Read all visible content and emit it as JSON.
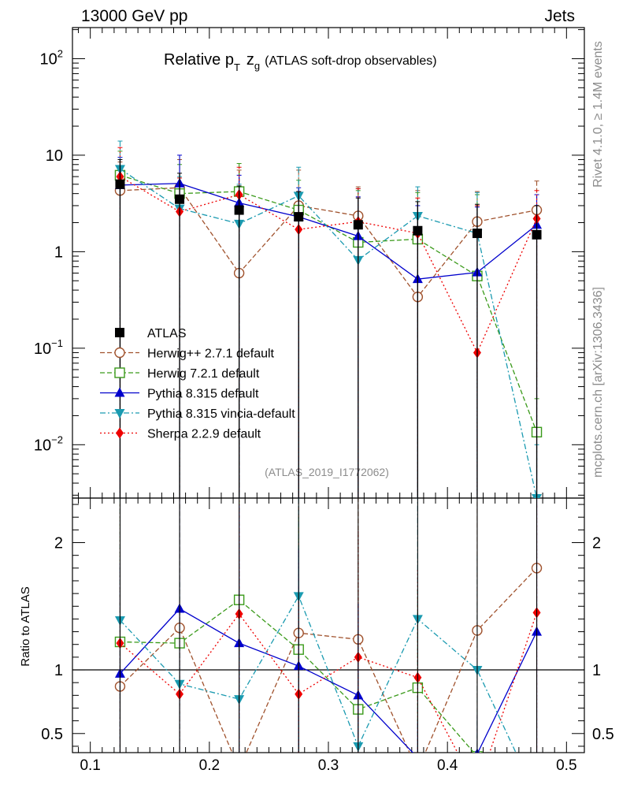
{
  "header": {
    "left": "13000 GeV pp",
    "right": "Jets"
  },
  "side_labels": {
    "rivet": "Rivet 4.1.0, ≥ 1.4M events",
    "mcplots": "mcplots.cern.ch [arXiv:1306.3436]"
  },
  "title": {
    "relative": "Relative p",
    "pt_sub": "T",
    "zg": "z",
    "zg_sub": "g",
    "rest": "(ATLAS soft-drop observables)"
  },
  "analysis_id": "(ATLAS_2019_I1772062)",
  "ratio_ylabel": "Ratio to ATLAS",
  "chart_data": {
    "type": "scatter",
    "x": [
      0.125,
      0.175,
      0.225,
      0.275,
      0.325,
      0.375,
      0.425,
      0.475
    ],
    "xlim": [
      0.085,
      0.515
    ],
    "xticks": [
      0.1,
      0.2,
      0.3,
      0.4,
      0.5
    ],
    "xtick_labels": [
      "0.1",
      "0.2",
      "0.3",
      "0.4",
      "0.5"
    ],
    "main": {
      "yscale": "log",
      "ylim": [
        0.0028,
        210
      ],
      "yticks": [
        {
          "v": 0.01,
          "base": "10",
          "exp": "−2"
        },
        {
          "v": 0.1,
          "base": "10",
          "exp": "−1"
        },
        {
          "v": 1,
          "base": "1",
          "exp": ""
        },
        {
          "v": 10,
          "base": "10",
          "exp": ""
        },
        {
          "v": 100,
          "base": "10",
          "exp": "2"
        }
      ]
    },
    "ratio": {
      "ylim": [
        0.35,
        2.35
      ],
      "yticks": [
        0.5,
        1,
        2
      ],
      "ytick_labels": [
        "0.5",
        "1",
        "2"
      ],
      "reference": 1
    },
    "series": [
      {
        "name": "ATLAS",
        "legend": "ATLAS",
        "color": "#000000",
        "marker": "square-filled",
        "line": "none",
        "values": [
          5.0,
          3.5,
          2.7,
          2.3,
          1.9,
          1.65,
          1.55,
          1.5
        ],
        "err_up": [
          9.0,
          6.5,
          4.8,
          4.2,
          3.6,
          3.3,
          3.1,
          3.0
        ],
        "err_low": [
          0.0001,
          0.0001,
          0.0001,
          0.0001,
          0.0001,
          0.0001,
          0.0001,
          0.0001
        ],
        "ratio": [
          1,
          1,
          1,
          1,
          1,
          1,
          1,
          1
        ]
      },
      {
        "name": "Herwig++ 2.7.1 default",
        "legend": "Herwig++ 2.7.1 default",
        "color": "#a0522d",
        "marker": "circle-open",
        "line": "dashed",
        "values": [
          4.3,
          4.6,
          0.6,
          3.0,
          2.35,
          0.34,
          2.05,
          2.7
        ],
        "err_up": [
          8.5,
          9.0,
          7.0,
          7.0,
          4.7,
          4.3,
          4.2,
          5.4
        ],
        "err_low": [
          0.0001,
          0.0001,
          0.0001,
          0.0001,
          0.0001,
          0.0001,
          0.0001,
          0.0001
        ],
        "ratio": [
          0.87,
          1.33,
          0.22,
          1.29,
          1.24,
          0.21,
          1.31,
          1.8
        ]
      },
      {
        "name": "Herwig 7.2.1 default",
        "legend": "Herwig 7.2.1 default",
        "color": "#3a9a1a",
        "marker": "square-open",
        "line": "dashed",
        "values": [
          6.2,
          4.0,
          4.2,
          2.7,
          1.25,
          1.35,
          0.56,
          0.0135
        ],
        "err_up": [
          11.0,
          8.0,
          8.2,
          5.5,
          4.3,
          4.1,
          3.9,
          0.03
        ],
        "err_low": [
          0.0001,
          0.0001,
          0.0001,
          0.0001,
          0.0001,
          0.0001,
          0.0001,
          0.0001
        ],
        "ratio": [
          1.22,
          1.21,
          1.55,
          1.16,
          0.69,
          0.86,
          0.32,
          0.01
        ]
      },
      {
        "name": "Pythia 8.315 default",
        "legend": "Pythia 8.315 default",
        "color": "#0000cc",
        "marker": "triangle-up",
        "line": "solid",
        "values": [
          4.9,
          5.1,
          3.2,
          2.3,
          1.45,
          0.52,
          0.61,
          1.9
        ],
        "err_up": [
          9.5,
          10.0,
          6.2,
          4.6,
          3.7,
          3.0,
          2.9,
          3.9
        ],
        "err_low": [
          0.0001,
          0.0001,
          0.0001,
          0.0001,
          0.0001,
          0.0001,
          0.0001,
          0.0001
        ],
        "ratio": [
          0.97,
          1.48,
          1.21,
          1.03,
          0.8,
          0.31,
          0.34,
          1.3
        ]
      },
      {
        "name": "Pythia 8.315 vincia-default",
        "legend": "Pythia 8.315 vincia-default",
        "color": "#1a9ab0",
        "marker": "triangle-down",
        "line": "dashdot",
        "values": [
          7.2,
          2.8,
          1.95,
          3.8,
          0.82,
          2.35,
          1.55,
          0.0028
        ],
        "err_up": [
          14.0,
          6.0,
          5.0,
          7.5,
          4.5,
          4.7,
          4.1,
          0.01
        ],
        "err_low": [
          0.0001,
          0.0001,
          0.0001,
          0.0001,
          0.0001,
          0.0001,
          0.0001,
          0.0001
        ],
        "ratio": [
          1.39,
          0.89,
          0.77,
          1.58,
          0.4,
          1.4,
          1.0,
          0.0
        ]
      },
      {
        "name": "Sherpa 2.2.9 default",
        "legend": "Sherpa 2.2.9 default",
        "color": "#ee0000",
        "marker": "diamond",
        "line": "dotted",
        "values": [
          6.0,
          2.6,
          3.9,
          1.7,
          2.05,
          1.55,
          0.09,
          2.2
        ],
        "err_up": [
          12.0,
          5.8,
          7.5,
          4.2,
          4.5,
          3.6,
          3.0,
          4.3
        ],
        "err_low": [
          0.0001,
          0.0001,
          0.0001,
          0.0001,
          0.0001,
          0.0001,
          0.0001,
          0.0001
        ],
        "ratio": [
          1.21,
          0.81,
          1.44,
          0.81,
          1.1,
          0.94,
          0.06,
          1.45
        ]
      }
    ]
  }
}
